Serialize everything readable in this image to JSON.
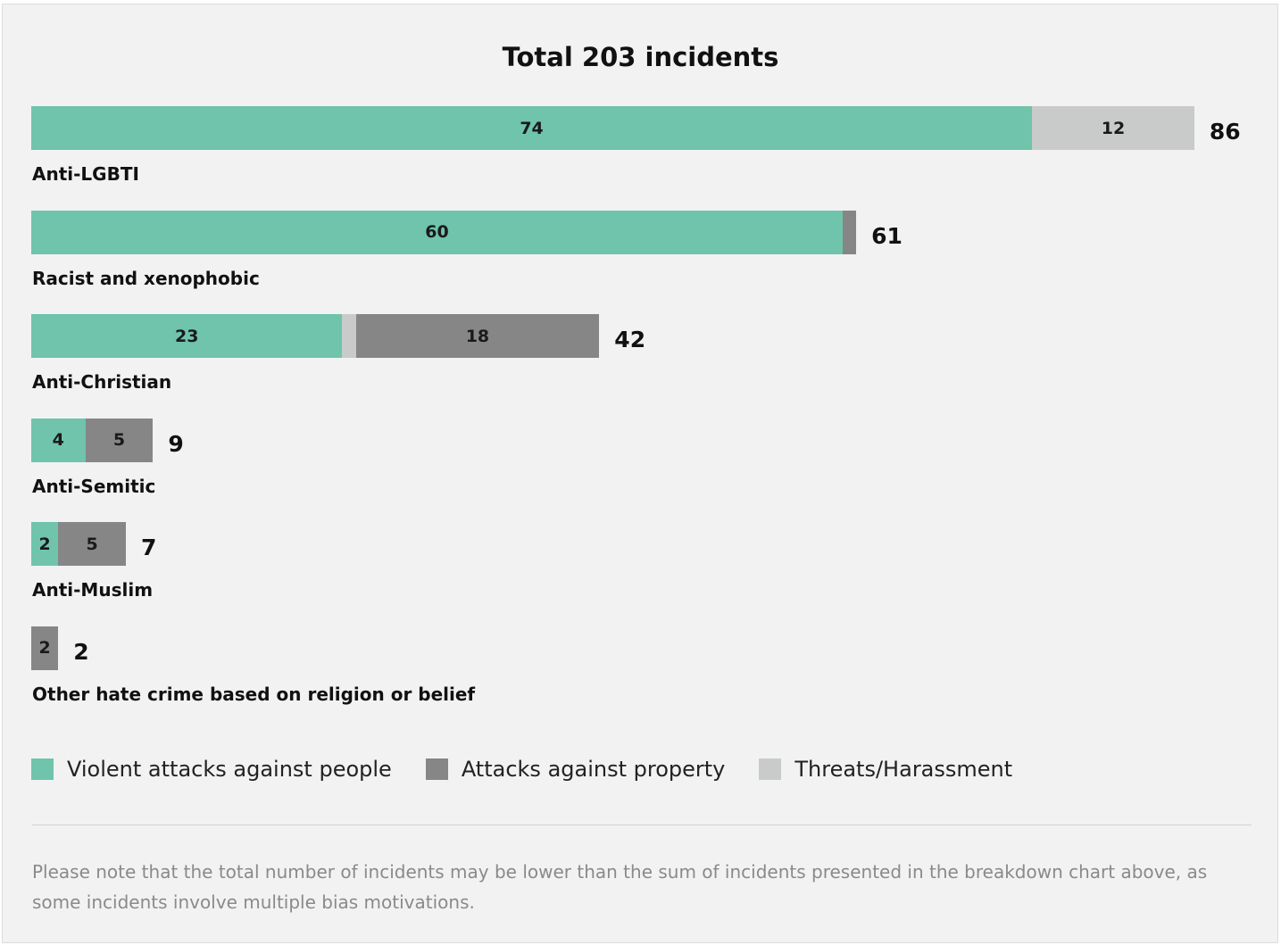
{
  "colors": {
    "violent": "#6fc4ab",
    "property": "#868686",
    "threats": "#c8cbca"
  },
  "chart_data": {
    "type": "bar",
    "orientation": "horizontal",
    "stacked": true,
    "title": "Total 203 incidents",
    "categories": [
      "Anti-LGBTI",
      "Racist and xenophobic",
      "Anti-Christian",
      "Anti-Semitic",
      "Anti-Muslim",
      "Other hate crime based on religion or belief"
    ],
    "series": [
      {
        "name": "Violent attacks against people",
        "key": "violent",
        "values": [
          74,
          60,
          23,
          4,
          2,
          0
        ]
      },
      {
        "name": "Attacks against property",
        "key": "property",
        "values": [
          0,
          1,
          18,
          5,
          5,
          2
        ]
      },
      {
        "name": "Threats/Harassment",
        "key": "threats",
        "values": [
          12,
          0,
          1,
          0,
          0,
          0
        ]
      }
    ],
    "totals": [
      86,
      61,
      42,
      9,
      7,
      2
    ],
    "legend_position": "bottom-left",
    "grid": false
  },
  "footnote": "Please note that the total number of incidents may be lower than the sum of incidents presented in the breakdown chart above, as some incidents involve multiple bias motivations."
}
